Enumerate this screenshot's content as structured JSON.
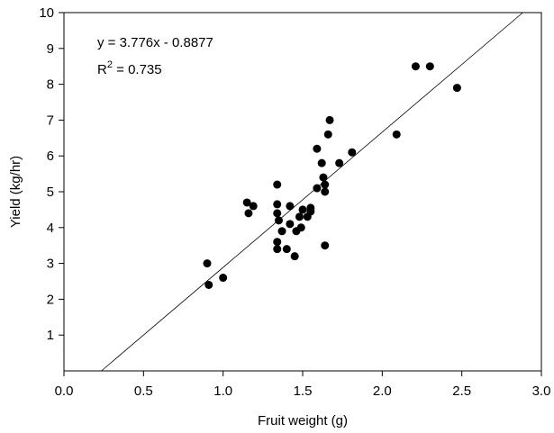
{
  "chart_data": {
    "type": "scatter",
    "xlabel": "Fruit weight (g)",
    "ylabel": "Yield (kg/hr)",
    "equation": "y = 3.776x - 0.8877",
    "r2_label": {
      "base": "R",
      "sup": "2",
      "rest": " = 0.735"
    },
    "fit": {
      "slope": 3.776,
      "intercept": -0.8877
    },
    "color": "#000000",
    "xlim": [
      0,
      3
    ],
    "ylim": [
      0,
      10
    ],
    "xticks": [
      {
        "value": 0,
        "label": "0.0"
      },
      0.5,
      {
        "value": 1,
        "label": "1.0"
      },
      1.5,
      {
        "value": 2,
        "label": "2.0"
      },
      2.5,
      {
        "value": 3,
        "label": "3.0"
      }
    ],
    "yticks": [
      1,
      2,
      3,
      4,
      5,
      6,
      7,
      8,
      9,
      10
    ],
    "x": [
      0.9,
      0.91,
      1.0,
      1.15,
      1.16,
      1.19,
      1.34,
      1.34,
      1.34,
      1.35,
      1.34,
      1.34,
      1.37,
      1.4,
      1.42,
      1.42,
      1.46,
      1.45,
      1.48,
      1.49,
      1.5,
      1.53,
      1.55,
      1.55,
      1.59,
      1.59,
      1.62,
      1.63,
      1.64,
      1.64,
      1.64,
      1.66,
      1.67,
      1.73,
      1.81,
      2.09,
      2.21,
      2.3,
      2.47
    ],
    "values": [
      3.0,
      2.4,
      2.6,
      4.7,
      4.4,
      4.6,
      5.2,
      4.65,
      4.4,
      4.2,
      3.6,
      3.4,
      3.9,
      3.4,
      4.6,
      4.1,
      3.9,
      3.2,
      4.3,
      4.0,
      4.5,
      4.3,
      4.55,
      4.45,
      5.1,
      6.2,
      5.8,
      5.4,
      5.2,
      5.0,
      3.5,
      6.6,
      7.0,
      5.8,
      6.1,
      6.6,
      8.5,
      8.5,
      7.9
    ]
  }
}
